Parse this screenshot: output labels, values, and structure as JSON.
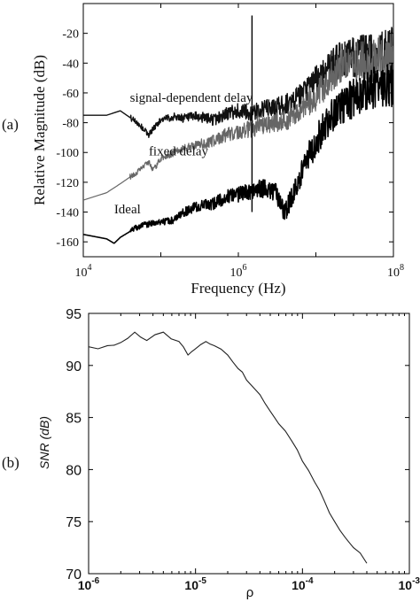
{
  "panel_labels": {
    "a": "(a)",
    "b": "(b)"
  },
  "chart_data": [
    {
      "type": "line",
      "xlabel": "Frequency (Hz)",
      "ylabel": "Relative Magnitude (dB)",
      "xscale": "log",
      "xlim": [
        10000,
        100000000
      ],
      "ylim": [
        -170,
        0
      ],
      "xticks": [
        {
          "value": 10000,
          "base": "10",
          "exp": "4"
        },
        {
          "value": 1000000,
          "base": "10",
          "exp": "6"
        },
        {
          "value": 100000000,
          "base": "10",
          "exp": "8"
        }
      ],
      "yticks": [
        -160,
        -140,
        -120,
        -100,
        -80,
        -60,
        -40,
        -20
      ],
      "grid": false,
      "annotations": [
        {
          "text": "signal-dependent delay",
          "x": 40000,
          "y": -66
        },
        {
          "text": "fixed delay",
          "x": 70000,
          "y": -102
        },
        {
          "text": "Ideal",
          "x": 25000,
          "y": -141
        }
      ],
      "series": [
        {
          "color": "#111111",
          "x": [
            10000,
            20000,
            30000,
            50000,
            70000,
            80000,
            100000,
            150000,
            200000,
            300000,
            500000,
            700000,
            1000000,
            1500000,
            2000000,
            3000000,
            5000000,
            7000000,
            10000000,
            15000000,
            20000000,
            30000000,
            50000000,
            70000000,
            100000000
          ],
          "y": [
            -75,
            -75,
            -72,
            -80,
            -88,
            -84,
            -78,
            -76,
            -77,
            -76,
            -78,
            -74,
            -72,
            -74,
            -71,
            -70,
            -66,
            -60,
            -52,
            -42,
            -38,
            -36,
            -34,
            -33,
            -32
          ]
        },
        {
          "color": "#666666",
          "x": [
            10000,
            20000,
            30000,
            50000,
            70000,
            80000,
            100000,
            150000,
            200000,
            300000,
            500000,
            700000,
            1000000,
            1500000,
            2000000,
            3000000,
            5000000,
            7000000,
            10000000,
            15000000,
            20000000,
            30000000,
            50000000,
            70000000,
            100000000
          ],
          "y": [
            -132,
            -127,
            -121,
            -113,
            -106,
            -112,
            -104,
            -100,
            -97,
            -95,
            -92,
            -88,
            -86,
            -84,
            -82,
            -80,
            -77,
            -70,
            -62,
            -50,
            -42,
            -40,
            -38,
            -36,
            -35
          ]
        },
        {
          "color": "#000000",
          "x": [
            10000,
            20000,
            25000,
            30000,
            50000,
            70000,
            100000,
            150000,
            200000,
            300000,
            500000,
            700000,
            1000000,
            1500000,
            2000000,
            3000000,
            4000000,
            5000000,
            7000000,
            10000000,
            15000000,
            20000000,
            30000000,
            50000000,
            70000000,
            100000000
          ],
          "y": [
            -155,
            -158,
            -161,
            -157,
            -150,
            -148,
            -147,
            -145,
            -140,
            -136,
            -134,
            -130,
            -128,
            -126,
            -124,
            -127,
            -140,
            -128,
            -110,
            -92,
            -78,
            -70,
            -64,
            -58,
            -56,
            -55
          ]
        }
      ],
      "spike": {
        "x": 1500000,
        "ymin": -140,
        "ymax": -8
      }
    },
    {
      "type": "line",
      "xlabel": "ρ",
      "ylabel": "SNR (dB)",
      "xscale": "log",
      "xlim": [
        1e-06,
        0.001
      ],
      "ylim": [
        70,
        95
      ],
      "xticks": [
        {
          "value": 1e-06,
          "base": "10",
          "exp": "-6"
        },
        {
          "value": 1e-05,
          "base": "10",
          "exp": "-5"
        },
        {
          "value": 0.0001,
          "base": "10",
          "exp": "-4"
        },
        {
          "value": 0.001,
          "base": "10",
          "exp": "-3"
        }
      ],
      "yticks": [
        70,
        75,
        80,
        85,
        90,
        95
      ],
      "grid": false,
      "series": [
        {
          "color": "#222222",
          "x": [
            1e-06,
            1.5e-06,
            2e-06,
            2.7e-06,
            3.5e-06,
            5e-06,
            7e-06,
            8.5e-06,
            1e-05,
            1.25e-05,
            1.5e-05,
            2e-05,
            2.5e-05,
            3e-05,
            4e-05,
            5e-05,
            6e-05,
            8e-05,
            0.0001,
            0.00013,
            0.00016,
            0.0002,
            0.00025,
            0.0003,
            0.0004
          ],
          "y": [
            91.8,
            91.9,
            92.2,
            93.2,
            92.4,
            93.2,
            92.3,
            91.0,
            91.6,
            92.3,
            91.9,
            91.0,
            89.7,
            88.6,
            87.2,
            85.6,
            84.4,
            82.7,
            80.8,
            78.8,
            77.0,
            75.0,
            73.5,
            72.5,
            71.0
          ]
        }
      ]
    }
  ]
}
